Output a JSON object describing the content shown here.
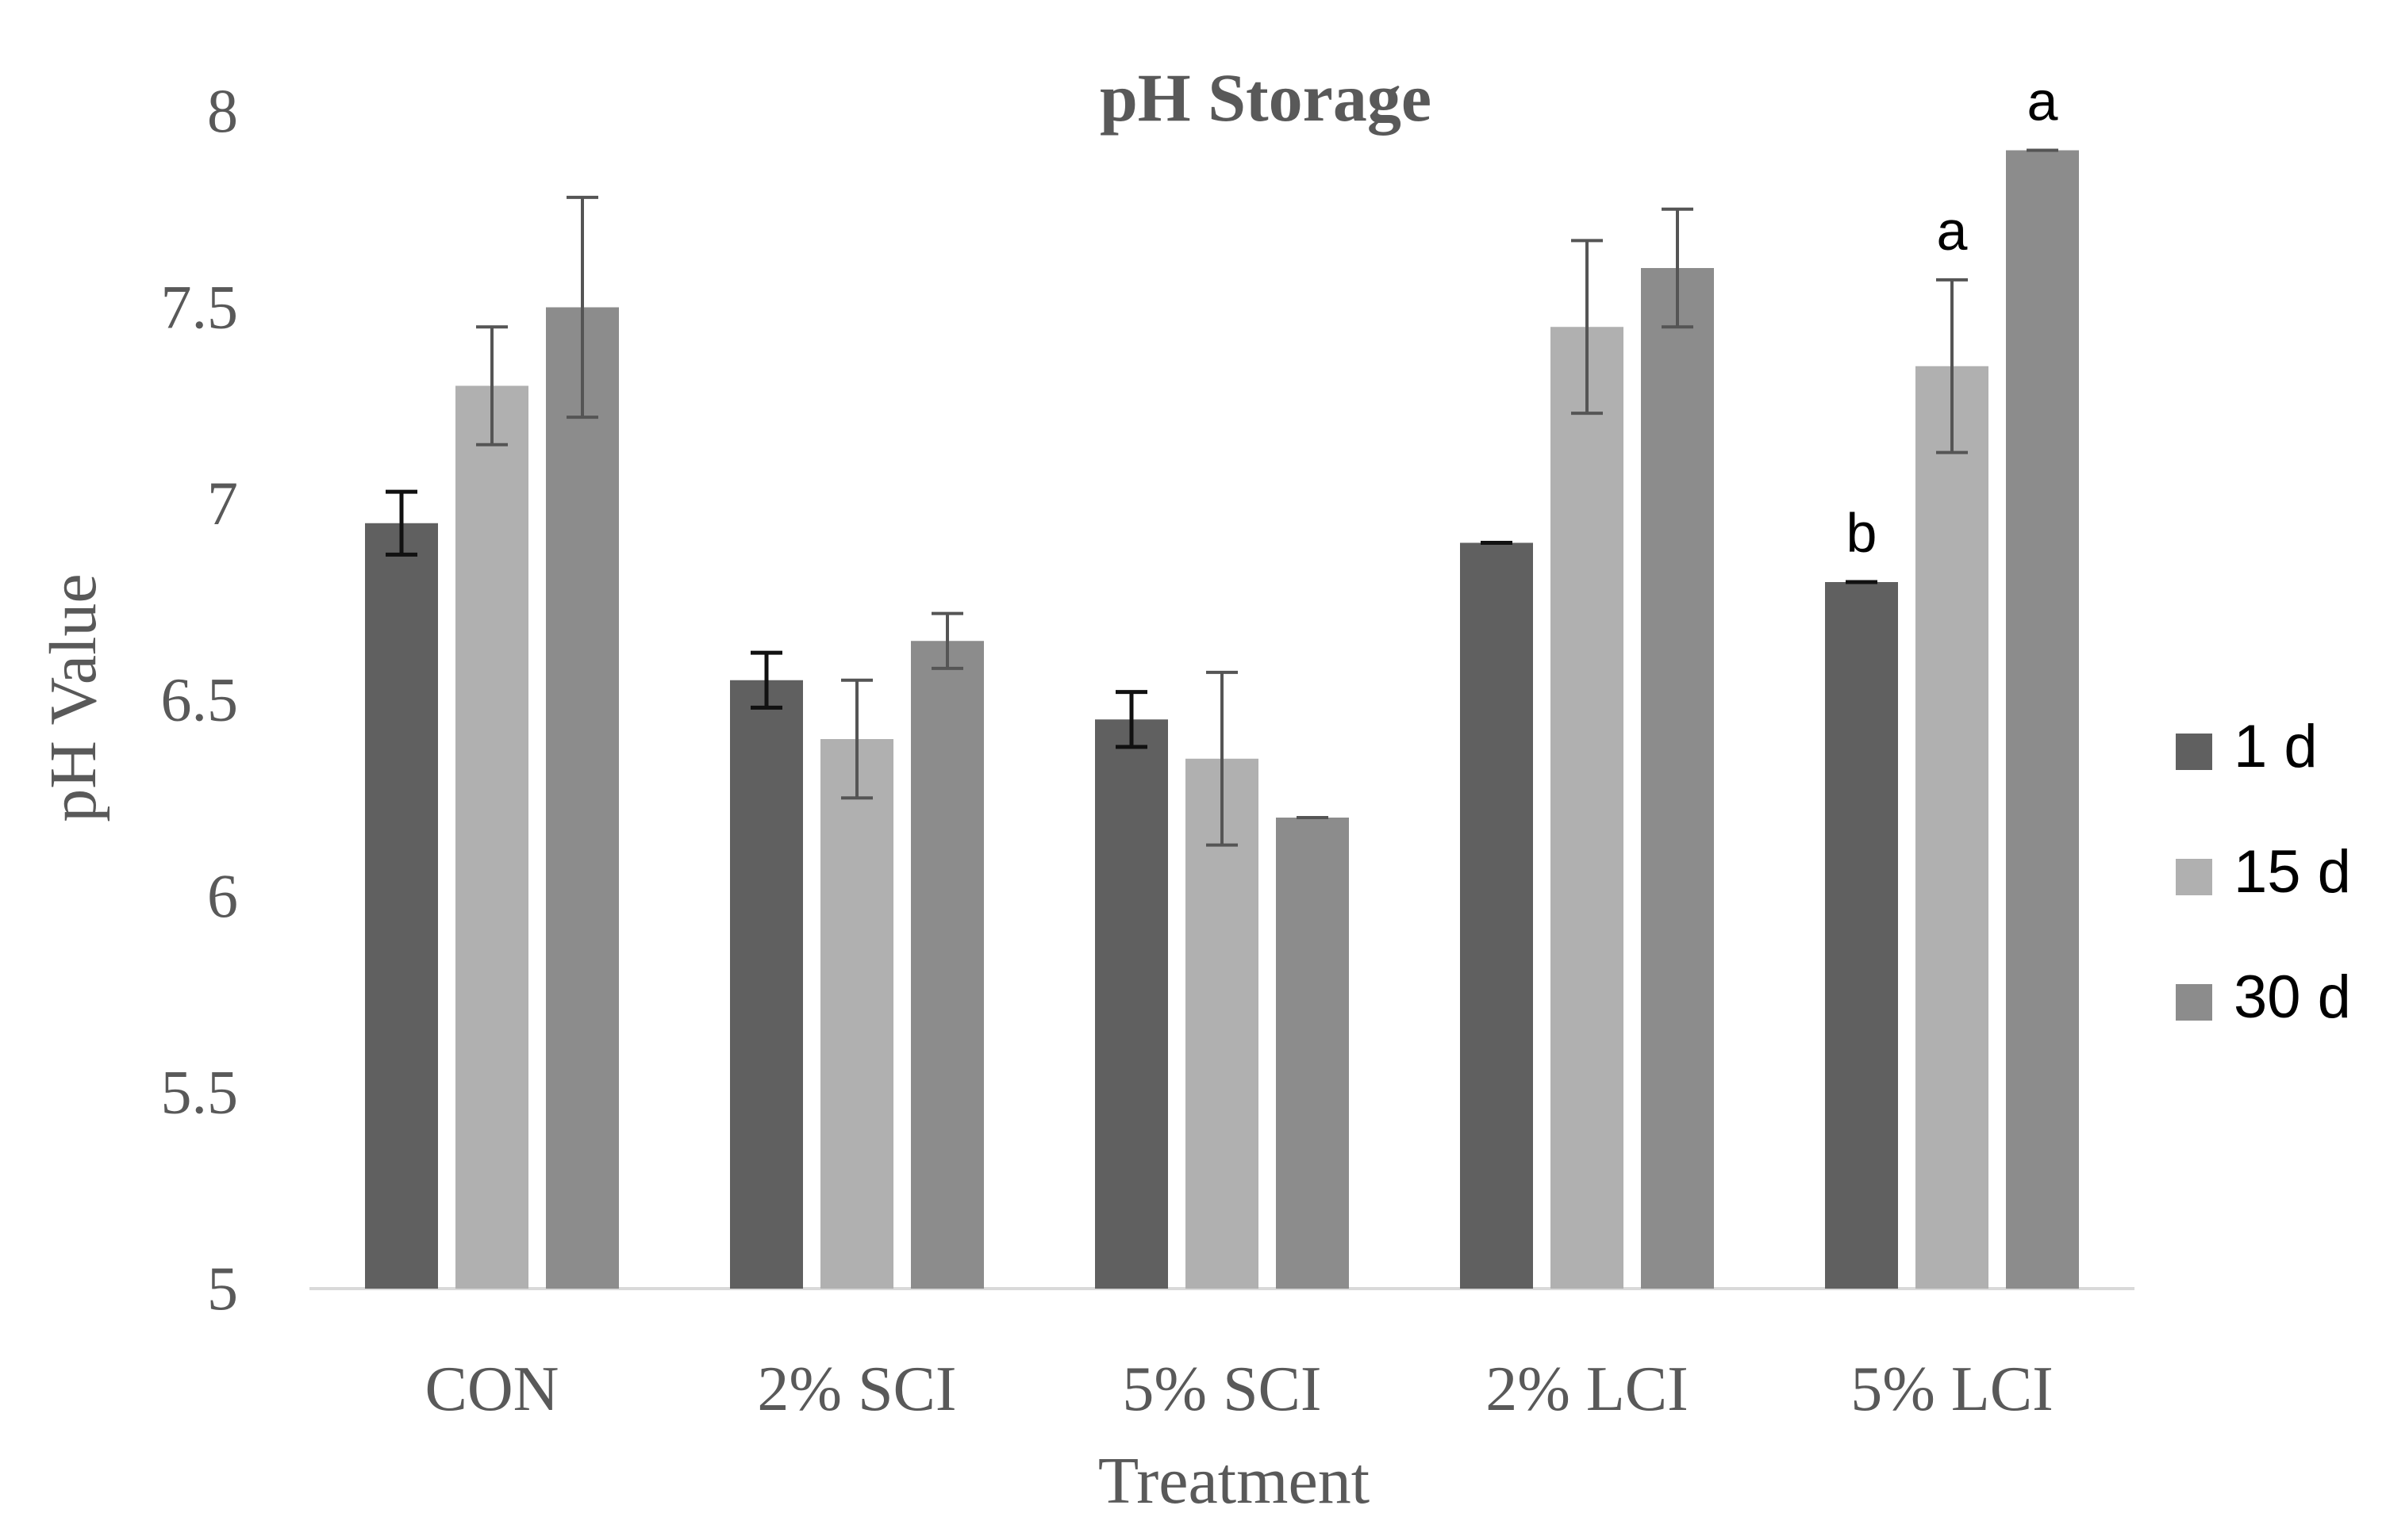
{
  "chart_data": {
    "type": "bar",
    "title": "pH Storage",
    "xlabel": "Treatment",
    "ylabel": "pH Value",
    "ylim": [
      5,
      8
    ],
    "yticks": [
      "5",
      "5.5",
      "6",
      "6.5",
      "7",
      "7.5",
      "8"
    ],
    "categories": [
      "CON",
      "2% SCI",
      "5% SCI",
      "2% LCI",
      "5% LCI"
    ],
    "series": [
      {
        "name": "1 d",
        "color": "#606060",
        "values": [
          6.95,
          6.55,
          6.45,
          6.9,
          6.8
        ],
        "errors": [
          0.08,
          0.07,
          0.07,
          0.0,
          0.0
        ]
      },
      {
        "name": "15 d",
        "color": "#b0b0b0",
        "values": [
          7.3,
          6.4,
          6.35,
          7.45,
          7.35
        ],
        "errors": [
          0.15,
          0.15,
          0.22,
          0.22,
          0.22
        ]
      },
      {
        "name": "30 d",
        "color": "#8c8c8c",
        "values": [
          7.5,
          6.65,
          6.2,
          7.6,
          7.9
        ],
        "errors": [
          0.28,
          0.07,
          0.0,
          0.15,
          0.0
        ]
      }
    ],
    "annotations": [
      {
        "category": "5% LCI",
        "series": "1 d",
        "text": "b"
      },
      {
        "category": "5% LCI",
        "series": "15 d",
        "text": "a"
      },
      {
        "category": "5% LCI",
        "series": "30 d",
        "text": "a"
      }
    ],
    "legend_position": "right",
    "grid": false
  }
}
